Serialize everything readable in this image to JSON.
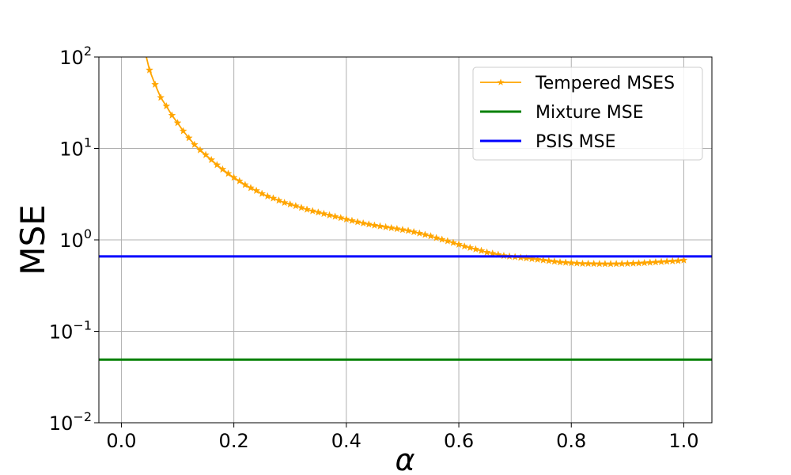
{
  "chart_data": {
    "type": "line",
    "xlabel": "α",
    "ylabel": "MSE",
    "xlim": [
      -0.04,
      1.05
    ],
    "ylim": [
      0.01,
      100
    ],
    "yscale": "log",
    "grid": true,
    "legend_position": "top-right",
    "x_ticks": [
      {
        "value": 0.0,
        "label": "0.0"
      },
      {
        "value": 0.2,
        "label": "0.2"
      },
      {
        "value": 0.4,
        "label": "0.4"
      },
      {
        "value": 0.6,
        "label": "0.6"
      },
      {
        "value": 0.8,
        "label": "0.8"
      },
      {
        "value": 1.0,
        "label": "1.0"
      }
    ],
    "y_ticks": [
      {
        "value": 0.01,
        "base": "10",
        "exp": "−2"
      },
      {
        "value": 0.1,
        "base": "10",
        "exp": "−1"
      },
      {
        "value": 1,
        "base": "10",
        "exp": "0"
      },
      {
        "value": 10,
        "base": "10",
        "exp": "1"
      },
      {
        "value": 100,
        "base": "10",
        "exp": "2"
      }
    ],
    "series": [
      {
        "name": "Tempered MSES",
        "color": "#ffa500",
        "marker": "star",
        "x": [
          0.04,
          0.05,
          0.06,
          0.07,
          0.08,
          0.09,
          0.1,
          0.11,
          0.12,
          0.13,
          0.14,
          0.15,
          0.16,
          0.17,
          0.18,
          0.19,
          0.2,
          0.21,
          0.22,
          0.23,
          0.24,
          0.25,
          0.26,
          0.27,
          0.28,
          0.29,
          0.3,
          0.31,
          0.32,
          0.33,
          0.34,
          0.35,
          0.36,
          0.37,
          0.38,
          0.39,
          0.4,
          0.41,
          0.42,
          0.43,
          0.44,
          0.45,
          0.46,
          0.47,
          0.48,
          0.49,
          0.5,
          0.51,
          0.52,
          0.53,
          0.54,
          0.55,
          0.56,
          0.57,
          0.58,
          0.59,
          0.6,
          0.61,
          0.62,
          0.63,
          0.64,
          0.65,
          0.66,
          0.67,
          0.68,
          0.69,
          0.7,
          0.71,
          0.72,
          0.73,
          0.74,
          0.75,
          0.76,
          0.77,
          0.78,
          0.79,
          0.8,
          0.81,
          0.82,
          0.83,
          0.84,
          0.85,
          0.86,
          0.87,
          0.88,
          0.89,
          0.9,
          0.91,
          0.92,
          0.93,
          0.94,
          0.95,
          0.96,
          0.97,
          0.98,
          0.99,
          1.0
        ],
        "y": [
          130,
          72,
          50,
          36,
          29,
          23,
          19,
          15.5,
          13,
          11,
          9.6,
          8.5,
          7.5,
          6.6,
          5.9,
          5.3,
          4.8,
          4.4,
          4.0,
          3.7,
          3.45,
          3.2,
          3.0,
          2.85,
          2.7,
          2.55,
          2.45,
          2.35,
          2.25,
          2.15,
          2.07,
          2.0,
          1.93,
          1.86,
          1.8,
          1.74,
          1.68,
          1.62,
          1.57,
          1.52,
          1.48,
          1.44,
          1.41,
          1.38,
          1.35,
          1.32,
          1.29,
          1.26,
          1.22,
          1.18,
          1.14,
          1.1,
          1.05,
          1.01,
          0.97,
          0.93,
          0.89,
          0.85,
          0.82,
          0.79,
          0.76,
          0.73,
          0.71,
          0.69,
          0.67,
          0.66,
          0.65,
          0.64,
          0.63,
          0.62,
          0.61,
          0.6,
          0.59,
          0.58,
          0.57,
          0.565,
          0.56,
          0.555,
          0.55,
          0.55,
          0.548,
          0.547,
          0.546,
          0.546,
          0.547,
          0.548,
          0.55,
          0.553,
          0.556,
          0.56,
          0.565,
          0.57,
          0.575,
          0.58,
          0.585,
          0.59,
          0.6
        ]
      },
      {
        "name": "Mixture MSE",
        "color": "#008000",
        "type": "hline",
        "value": 0.049
      },
      {
        "name": "PSIS MSE",
        "color": "#0000ff",
        "type": "hline",
        "value": 0.66
      }
    ]
  }
}
